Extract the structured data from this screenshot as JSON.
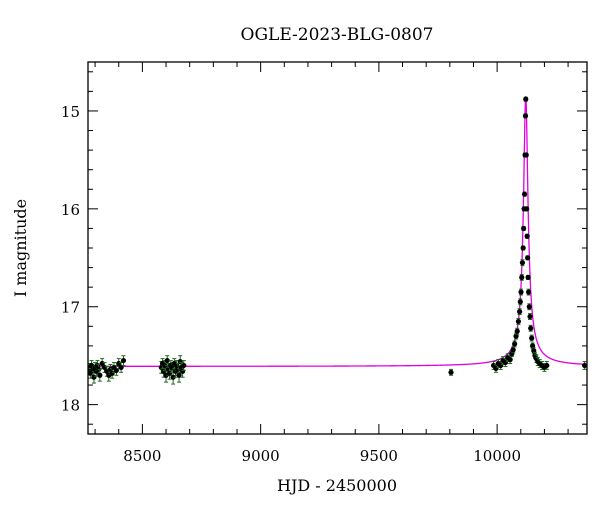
{
  "chart_data": {
    "type": "scatter",
    "title": "OGLE-2023-BLG-0807",
    "xlabel": "HJD - 2450000",
    "ylabel": "I magnitude",
    "xlim": [
      8270,
      10380
    ],
    "ylim": [
      18.3,
      14.5
    ],
    "y_inverted": true,
    "xticks": [
      8500,
      9000,
      9500,
      10000
    ],
    "yticks": [
      15,
      16,
      17,
      18
    ],
    "grid": false,
    "legend": "none",
    "colors": {
      "data": "#000000",
      "errorbar": "#1a6b1a",
      "model": "#e000e0"
    },
    "series": [
      {
        "kind": "points",
        "x": [
          8275,
          8280,
          8285,
          8290,
          8295,
          8300,
          8305,
          8310,
          8315,
          8320,
          8330,
          8340,
          8350,
          8358,
          8365,
          8372,
          8380,
          8390,
          8400,
          8410,
          8420,
          8580,
          8585,
          8590,
          8595,
          8600,
          8605,
          8610,
          8615,
          8620,
          8625,
          8630,
          8635,
          8640,
          8645,
          8650,
          8655,
          8660,
          8665,
          8670,
          8675,
          9805,
          9985,
          9995,
          10005,
          10015,
          10025,
          10035,
          10045,
          10055,
          10062,
          10068,
          10074,
          10080,
          10085,
          10090,
          10095,
          10098,
          10101,
          10104,
          10107,
          10110,
          10112,
          10114,
          10116,
          10118,
          10120,
          10121,
          10123,
          10125,
          10127,
          10129,
          10131,
          10133,
          10136,
          10139,
          10142,
          10146,
          10150,
          10155,
          10160,
          10166,
          10172,
          10180,
          10190,
          10200,
          10210,
          10370
        ],
        "y": [
          17.63,
          17.68,
          17.6,
          17.65,
          17.72,
          17.62,
          17.66,
          17.6,
          17.64,
          17.7,
          17.58,
          17.62,
          17.66,
          17.7,
          17.64,
          17.68,
          17.62,
          17.65,
          17.58,
          17.62,
          17.55,
          17.62,
          17.58,
          17.66,
          17.6,
          17.7,
          17.55,
          17.64,
          17.68,
          17.6,
          17.62,
          17.72,
          17.58,
          17.66,
          17.6,
          17.64,
          17.7,
          17.56,
          17.62,
          17.66,
          17.6,
          17.67,
          17.6,
          17.63,
          17.58,
          17.6,
          17.55,
          17.57,
          17.52,
          17.54,
          17.48,
          17.44,
          17.38,
          17.3,
          17.25,
          17.15,
          17.05,
          16.95,
          16.85,
          16.7,
          16.55,
          16.4,
          16.2,
          16.0,
          15.85,
          15.45,
          15.05,
          14.88,
          15.45,
          16.0,
          16.28,
          16.5,
          16.7,
          16.85,
          17.0,
          17.1,
          17.22,
          17.32,
          17.4,
          17.45,
          17.5,
          17.53,
          17.56,
          17.58,
          17.6,
          17.62,
          17.6,
          17.6
        ],
        "yerr": [
          0.05,
          0.05,
          0.05,
          0.05,
          0.06,
          0.05,
          0.05,
          0.05,
          0.05,
          0.06,
          0.05,
          0.05,
          0.05,
          0.06,
          0.05,
          0.05,
          0.05,
          0.05,
          0.05,
          0.05,
          0.05,
          0.06,
          0.05,
          0.06,
          0.05,
          0.07,
          0.05,
          0.06,
          0.06,
          0.05,
          0.05,
          0.07,
          0.05,
          0.06,
          0.05,
          0.06,
          0.07,
          0.06,
          0.05,
          0.06,
          0.05,
          0.03,
          0.04,
          0.04,
          0.04,
          0.04,
          0.04,
          0.04,
          0.04,
          0.04,
          0.03,
          0.03,
          0.03,
          0.03,
          0.03,
          0.03,
          0.03,
          0.03,
          0.03,
          0.03,
          0.03,
          0.02,
          0.02,
          0.02,
          0.02,
          0.02,
          0.02,
          0.02,
          0.02,
          0.02,
          0.02,
          0.02,
          0.02,
          0.03,
          0.03,
          0.03,
          0.03,
          0.03,
          0.03,
          0.03,
          0.03,
          0.04,
          0.04,
          0.04,
          0.04,
          0.04,
          0.04,
          0.04
        ]
      },
      {
        "kind": "model",
        "baseline": 17.61,
        "peak_time": 10121,
        "peak_mag": 14.85,
        "tE_scale": 10
      }
    ]
  }
}
